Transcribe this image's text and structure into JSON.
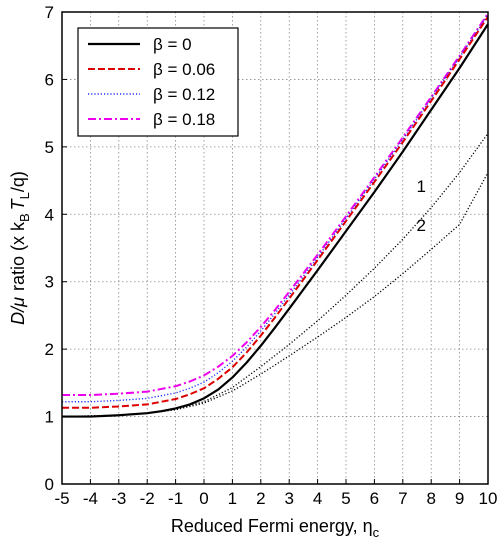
{
  "chart_data": {
    "type": "line",
    "xlabel": "Reduced Fermi energy, η",
    "xlabel_sub": "c",
    "ylabel_parts": {
      "main": "D/μ",
      "ratio": "ratio (x k",
      "sub1": "B",
      "T": "T",
      "sub2": "L",
      "tail": "/q)"
    },
    "xlim": [
      -5,
      10
    ],
    "ylim": [
      0,
      7
    ],
    "x_ticks": [
      "-5",
      "-4",
      "-3",
      "-2",
      "-1",
      "0",
      "1",
      "2",
      "3",
      "4",
      "5",
      "6",
      "7",
      "8",
      "9",
      "10"
    ],
    "y_ticks": [
      "0",
      "1",
      "2",
      "3",
      "4",
      "5",
      "6",
      "7"
    ],
    "grid": true,
    "legend_position": "top-left",
    "series": [
      {
        "name": "β = 0",
        "color": "#000000",
        "style": "solid",
        "x": [
          -5,
          -4,
          -3,
          -2,
          -1.5,
          -1,
          -0.5,
          0,
          0.5,
          1,
          1.5,
          2,
          2.5,
          3,
          4,
          5,
          6,
          7,
          8,
          9,
          10
        ],
        "y": [
          1.0,
          1.0,
          1.02,
          1.05,
          1.08,
          1.12,
          1.18,
          1.27,
          1.4,
          1.58,
          1.8,
          2.05,
          2.32,
          2.6,
          3.17,
          3.75,
          4.33,
          4.93,
          5.55,
          6.17,
          6.82
        ]
      },
      {
        "name": "β = 0.06",
        "color": "#dd0000",
        "style": "dash",
        "x": [
          -5,
          -4,
          -3,
          -2,
          -1.5,
          -1,
          -0.5,
          0,
          0.5,
          1,
          1.5,
          2,
          2.5,
          3,
          4,
          5,
          6,
          7,
          8,
          9,
          10
        ],
        "y": [
          1.13,
          1.13,
          1.15,
          1.18,
          1.22,
          1.26,
          1.33,
          1.42,
          1.56,
          1.73,
          1.95,
          2.2,
          2.47,
          2.75,
          3.32,
          3.9,
          4.48,
          5.07,
          5.68,
          6.3,
          6.93
        ]
      },
      {
        "name": "β = 0.12",
        "color": "#2233ff",
        "style": "dot",
        "x": [
          -5,
          -4,
          -3,
          -2,
          -1.5,
          -1,
          -0.5,
          0,
          0.5,
          1,
          1.5,
          2,
          2.5,
          3,
          4,
          5,
          6,
          7,
          8,
          9,
          10
        ],
        "y": [
          1.22,
          1.22,
          1.24,
          1.27,
          1.31,
          1.35,
          1.42,
          1.51,
          1.65,
          1.82,
          2.03,
          2.27,
          2.53,
          2.8,
          3.36,
          3.94,
          4.52,
          5.11,
          5.72,
          6.33,
          6.96
        ]
      },
      {
        "name": "β = 0.18",
        "color": "#ee00ee",
        "style": "dashdot",
        "x": [
          -5,
          -4,
          -3,
          -2,
          -1.5,
          -1,
          -0.5,
          0,
          0.5,
          1,
          1.5,
          2,
          2.5,
          3,
          4,
          5,
          6,
          7,
          8,
          9,
          10
        ],
        "y": [
          1.32,
          1.32,
          1.34,
          1.37,
          1.41,
          1.45,
          1.52,
          1.61,
          1.74,
          1.9,
          2.1,
          2.33,
          2.58,
          2.85,
          3.4,
          3.97,
          4.55,
          5.14,
          5.74,
          6.35,
          6.98
        ]
      },
      {
        "name": "1",
        "color": "#000000",
        "style": "dot",
        "x": [
          -5,
          -3,
          -2,
          -1,
          0,
          1,
          2,
          3,
          4,
          5,
          6,
          7,
          8,
          9,
          10
        ],
        "y": [
          1.0,
          1.02,
          1.05,
          1.11,
          1.22,
          1.43,
          1.74,
          2.07,
          2.42,
          2.8,
          3.2,
          3.63,
          4.1,
          4.62,
          5.2
        ]
      },
      {
        "name": "2",
        "color": "#000000",
        "style": "dot",
        "x": [
          -5,
          -3,
          -2,
          -1,
          0,
          1,
          2,
          3,
          4,
          5,
          6,
          7,
          8,
          9,
          10
        ],
        "y": [
          1.0,
          1.02,
          1.05,
          1.1,
          1.2,
          1.38,
          1.63,
          1.9,
          2.18,
          2.47,
          2.78,
          3.12,
          3.48,
          3.85,
          4.62
        ]
      }
    ],
    "annotations": [
      {
        "text": "1",
        "x": 7.65,
        "y": 4.33
      },
      {
        "text": "2",
        "x": 7.65,
        "y": 3.75
      }
    ],
    "legend_entries": [
      "β = 0",
      "β = 0.06",
      "β = 0.12",
      "β = 0.18"
    ]
  }
}
